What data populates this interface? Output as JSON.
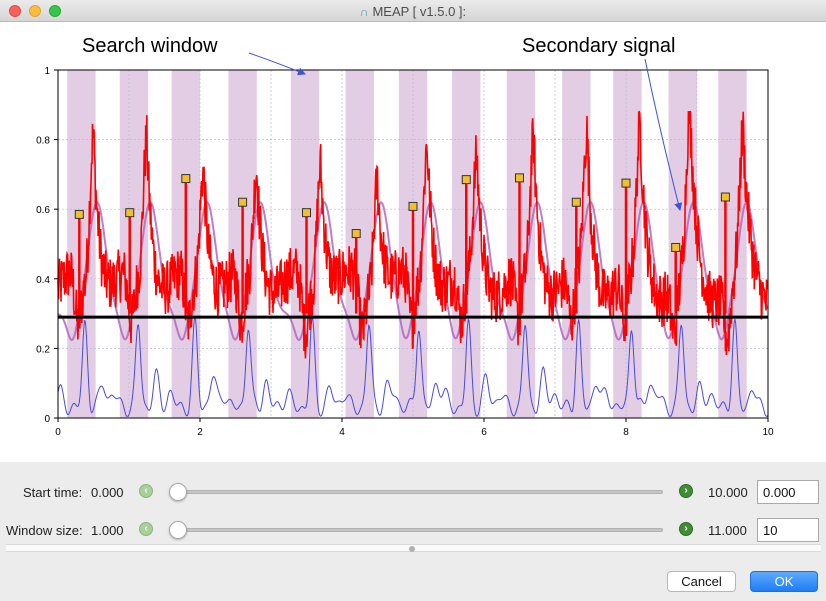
{
  "window": {
    "title": "MEAP [ v1.5.0 ]:",
    "logo_icon": "meap-logo-icon"
  },
  "annotations": {
    "search_window": "Search window",
    "secondary_signal": "Secondary signal"
  },
  "chart_data": {
    "type": "line",
    "title": "",
    "xlabel": "",
    "ylabel": "",
    "xlim": [
      0,
      10
    ],
    "ylim": [
      0,
      1
    ],
    "x_ticks": [
      "0",
      "2",
      "4",
      "6",
      "8",
      "10"
    ],
    "y_ticks": [
      "0",
      "0.2",
      "0.4",
      "0.6",
      "0.8",
      "1"
    ],
    "grid": true,
    "threshold": 0.29,
    "search_windows": [
      [
        0.13,
        0.53
      ],
      [
        0.87,
        1.27
      ],
      [
        1.6,
        2.0
      ],
      [
        2.4,
        2.8
      ],
      [
        3.28,
        3.68
      ],
      [
        4.05,
        4.45
      ],
      [
        4.8,
        5.2
      ],
      [
        5.55,
        5.95
      ],
      [
        6.32,
        6.72
      ],
      [
        7.1,
        7.5
      ],
      [
        7.82,
        8.22
      ],
      [
        8.6,
        9.0
      ],
      [
        9.3,
        9.7
      ]
    ],
    "markers": [
      {
        "x": 0.3,
        "y": 0.585
      },
      {
        "x": 1.01,
        "y": 0.59
      },
      {
        "x": 1.8,
        "y": 0.688
      },
      {
        "x": 2.6,
        "y": 0.62
      },
      {
        "x": 3.5,
        "y": 0.59
      },
      {
        "x": 4.2,
        "y": 0.53
      },
      {
        "x": 5.0,
        "y": 0.608
      },
      {
        "x": 5.75,
        "y": 0.685
      },
      {
        "x": 6.5,
        "y": 0.69
      },
      {
        "x": 7.3,
        "y": 0.62
      },
      {
        "x": 8.0,
        "y": 0.675
      },
      {
        "x": 8.7,
        "y": 0.49
      },
      {
        "x": 9.4,
        "y": 0.635
      }
    ],
    "primary_peaks": [
      {
        "x": 0.5,
        "y": 0.85
      },
      {
        "x": 1.25,
        "y": 0.82
      },
      {
        "x": 2.05,
        "y": 0.74
      },
      {
        "x": 2.8,
        "y": 0.73
      },
      {
        "x": 3.7,
        "y": 0.77
      },
      {
        "x": 4.5,
        "y": 0.73
      },
      {
        "x": 5.2,
        "y": 0.82
      },
      {
        "x": 5.9,
        "y": 0.75
      },
      {
        "x": 6.7,
        "y": 0.81
      },
      {
        "x": 7.45,
        "y": 0.81
      },
      {
        "x": 8.2,
        "y": 0.82
      },
      {
        "x": 8.9,
        "y": 0.85
      },
      {
        "x": 9.65,
        "y": 0.77
      }
    ],
    "colors": {
      "window": "#e2cde4",
      "primary": "#ff0000",
      "secondary": "#b266bf",
      "raw": "#4a4ad8",
      "threshold": "#000000",
      "marker_fill": "#f0c030",
      "annotation_arrow": "#3a53d8"
    }
  },
  "controls": {
    "start_time": {
      "label": "Start time:",
      "min": "0.000",
      "max": "10.000",
      "value": "0.000",
      "position": 0
    },
    "window_size": {
      "label": "Window size:",
      "min": "1.000",
      "max": "11.000",
      "value": "10",
      "position": 0
    }
  },
  "buttons": {
    "cancel": "Cancel",
    "ok": "OK"
  }
}
